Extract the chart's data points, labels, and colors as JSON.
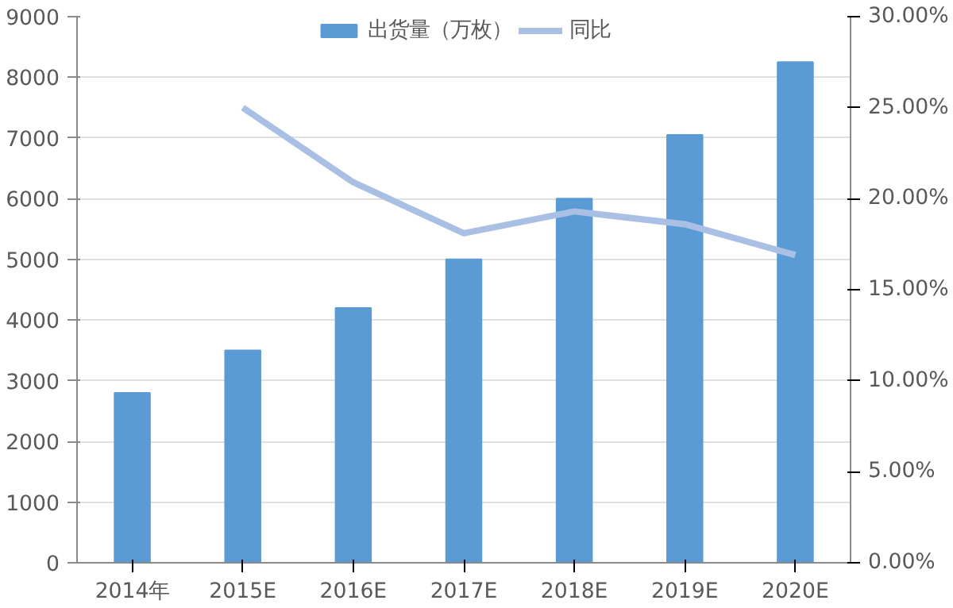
{
  "chart_data": {
    "type": "bar",
    "categories": [
      "2014年",
      "2015E",
      "2016E",
      "2017E",
      "2018E",
      "2019E",
      "2020E"
    ],
    "series": [
      {
        "name": "出货量（万枚）",
        "color": "#5b9bd5",
        "values": [
          2800,
          3500,
          4200,
          5000,
          6000,
          7050,
          8250
        ]
      },
      {
        "name": "同比",
        "type": "line",
        "axis": "y2",
        "color": "#a9bfe4",
        "values": [
          null,
          25,
          20.9,
          18.1,
          19.3,
          18.6,
          16.9
        ]
      }
    ],
    "ylim": [
      0,
      9000
    ],
    "yticks": [
      0,
      1000,
      2000,
      3000,
      4000,
      5000,
      6000,
      7000,
      8000,
      9000
    ],
    "y2lim": [
      0,
      30
    ],
    "y2ticks": [
      {
        "value": 0,
        "label": "0.00%"
      },
      {
        "value": 5,
        "label": "5.00%"
      },
      {
        "value": 10,
        "label": "10.00%"
      },
      {
        "value": 15,
        "label": "15.00%"
      },
      {
        "value": 20,
        "label": "20.00%"
      },
      {
        "value": 25,
        "label": "25.00%"
      },
      {
        "value": 30,
        "label": "30.00%"
      }
    ],
    "grid": "y",
    "legend": "top",
    "marker": "none",
    "line_style": "solid"
  }
}
